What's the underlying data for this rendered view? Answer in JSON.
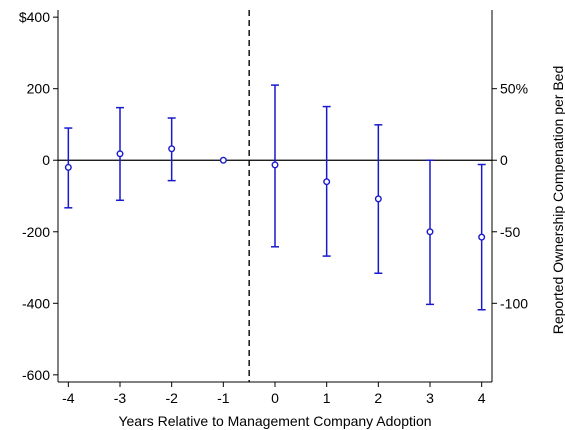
{
  "chart_data": {
    "type": "scatter",
    "title": "",
    "xlabel": "Years Relative to Management Company Adoption",
    "ylabel": "",
    "ylabel_right": "Reported Ownership Compenation per Bed",
    "x": [
      -4,
      -3,
      -2,
      -1,
      0,
      1,
      2,
      3,
      4
    ],
    "x_ticks": [
      "-4",
      "-3",
      "-2",
      "-1",
      "0",
      "1",
      "2",
      "3",
      "4"
    ],
    "xlim": [
      -4.2,
      4.2
    ],
    "ylim": [
      -620,
      420
    ],
    "y_ticks": [
      {
        "value": 400,
        "label": "$400"
      },
      {
        "value": 200,
        "label": "200"
      },
      {
        "value": 0,
        "label": "0"
      },
      {
        "value": -200,
        "label": "-200"
      },
      {
        "value": -400,
        "label": "-400"
      },
      {
        "value": -600,
        "label": "-600"
      }
    ],
    "y_ticks_right": [
      {
        "value": 50,
        "label": "50%"
      },
      {
        "value": 0,
        "label": "0"
      },
      {
        "value": -50,
        "label": "-50"
      },
      {
        "value": -100,
        "label": "-100"
      }
    ],
    "right_axis_scale": 4.0,
    "series": [
      {
        "values": [
          -20,
          18,
          32,
          0,
          -13,
          -60,
          -108,
          -200,
          -215
        ],
        "ci_low": [
          -133,
          -112,
          -57,
          0,
          -242,
          -268,
          -316,
          -403,
          -418
        ],
        "ci_high": [
          90,
          147,
          118,
          0,
          210,
          150,
          99,
          0,
          -12
        ]
      }
    ],
    "reference_lines": {
      "horizontal_y": 0,
      "vertical_x": -0.5
    },
    "grid": false,
    "legend": "none",
    "colors": {
      "series": "#1a1acd",
      "axes": "#000000",
      "reference": "#000000"
    }
  }
}
